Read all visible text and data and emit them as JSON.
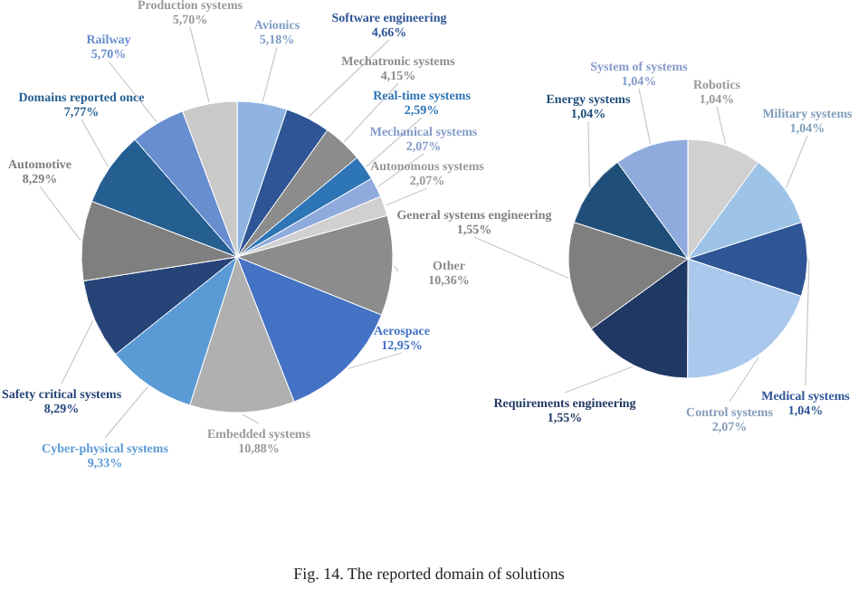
{
  "chart_data": [
    {
      "type": "pie",
      "categories": [
        "Avionics",
        "Software engineering",
        "Mechatronic systems",
        "Real-time systems",
        "Mechanical systems",
        "Autonomous systems",
        "Other",
        "Aerospace",
        "Embedded systems",
        "Cyber-physical systems",
        "Safety critical systems",
        "Automotive",
        "Domains reported once",
        "Railway",
        "Production systems"
      ],
      "values": [
        5.18,
        4.66,
        4.15,
        2.59,
        2.07,
        2.07,
        10.36,
        12.95,
        10.88,
        9.33,
        8.29,
        8.29,
        7.77,
        5.7,
        5.7
      ],
      "value_labels": [
        "5,18%",
        "4,66%",
        "4,15%",
        "2,59%",
        "2,07%",
        "2,07%",
        "10,36%",
        "12,95%",
        "10,88%",
        "9,33%",
        "8,29%",
        "8,29%",
        "7,77%",
        "5,70%",
        "5,70%"
      ],
      "colors": [
        "#8fb4e3",
        "#2f5597",
        "#8c8c8c",
        "#2e75b6",
        "#8faadc",
        "#d0d0d0",
        "#8c8c8c",
        "#4472c4",
        "#b0b0b0",
        "#5b9bd5",
        "#264478",
        "#7f7f7f",
        "#255e91",
        "#698ed0",
        "#c9c9c9"
      ],
      "legend": false,
      "annotations": [
        "Fig. 14.  The reported domain of solutions"
      ]
    },
    {
      "type": "pie",
      "categories": [
        "Robotics",
        "Military systems",
        "Medical systems",
        "Control systems",
        "Requirements engineering",
        "General systems engineering",
        "Energy systems",
        "System of systems"
      ],
      "values": [
        1.04,
        1.04,
        1.04,
        2.07,
        1.55,
        1.55,
        1.04,
        1.04
      ],
      "value_labels": [
        "1,04%",
        "1,04%",
        "1,04%",
        "2,07%",
        "1,55%",
        "1,55%",
        "1,04%",
        "1,04%"
      ],
      "colors": [
        "#d0d0d0",
        "#9dc3e6",
        "#2f5597",
        "#a9c8ec",
        "#203864",
        "#7f7f7f",
        "#1f4e79",
        "#8faadc"
      ],
      "legend": false
    }
  ]
}
